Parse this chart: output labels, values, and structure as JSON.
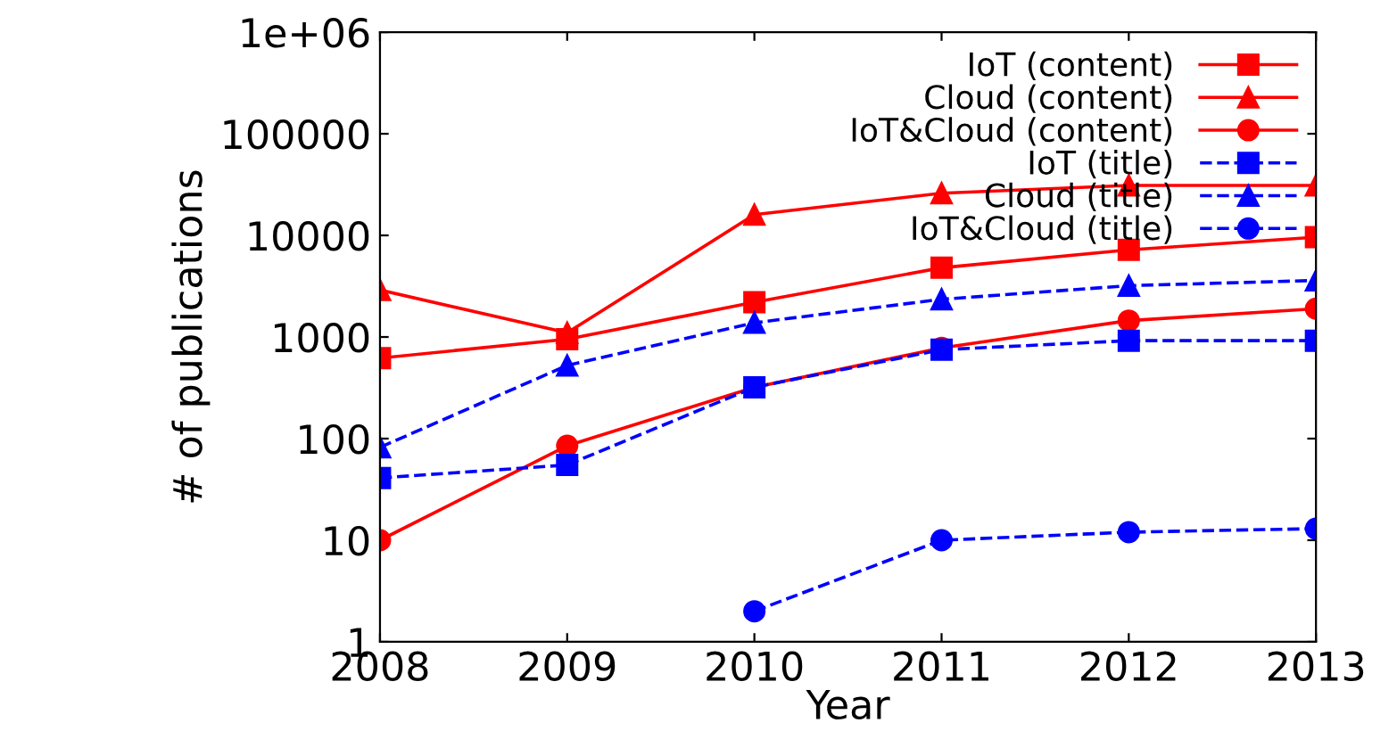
{
  "chart_data": {
    "type": "line",
    "xlabel": "Year",
    "ylabel": "# of publications",
    "log": "y",
    "x": [
      2008,
      2009,
      2010,
      2011,
      2012,
      2013
    ],
    "xlim": [
      2008,
      2013
    ],
    "xticks": [
      2008,
      2009,
      2010,
      2011,
      2012,
      2013
    ],
    "ylim": [
      1,
      1000000
    ],
    "yticks": [
      1,
      10,
      100,
      1000,
      10000,
      100000,
      {
        "value": 1000000,
        "label": "1e+06"
      }
    ],
    "grid": false,
    "legend": "top right",
    "series": [
      {
        "name": "IoT (content)",
        "color": "#ff0000",
        "marker": "square",
        "line_style": "solid",
        "values": [
          620,
          950,
          2200,
          4800,
          7200,
          9600
        ]
      },
      {
        "name": "Cloud (content)",
        "color": "#ff0000",
        "marker": "triangle",
        "line_style": "solid",
        "values": [
          2900,
          1100,
          16000,
          26000,
          31000,
          31000
        ]
      },
      {
        "name": "IoT&Cloud (content)",
        "color": "#ff0000",
        "marker": "circle",
        "line_style": "solid",
        "values": [
          10,
          85,
          320,
          780,
          1450,
          1900
        ]
      },
      {
        "name": "IoT (title)",
        "color": "#0000ff",
        "marker": "square",
        "line_style": "dashed",
        "values": [
          41,
          55,
          320,
          750,
          920,
          920
        ]
      },
      {
        "name": "Cloud (title)",
        "color": "#0000ff",
        "marker": "triangle",
        "line_style": "dashed",
        "values": [
          82,
          525,
          1380,
          2350,
          3200,
          3600
        ]
      },
      {
        "name": "IoT&Cloud (title)",
        "color": "#0000ff",
        "marker": "circle",
        "line_style": "dashed",
        "values": [
          null,
          null,
          2,
          10,
          12,
          13
        ]
      }
    ]
  }
}
